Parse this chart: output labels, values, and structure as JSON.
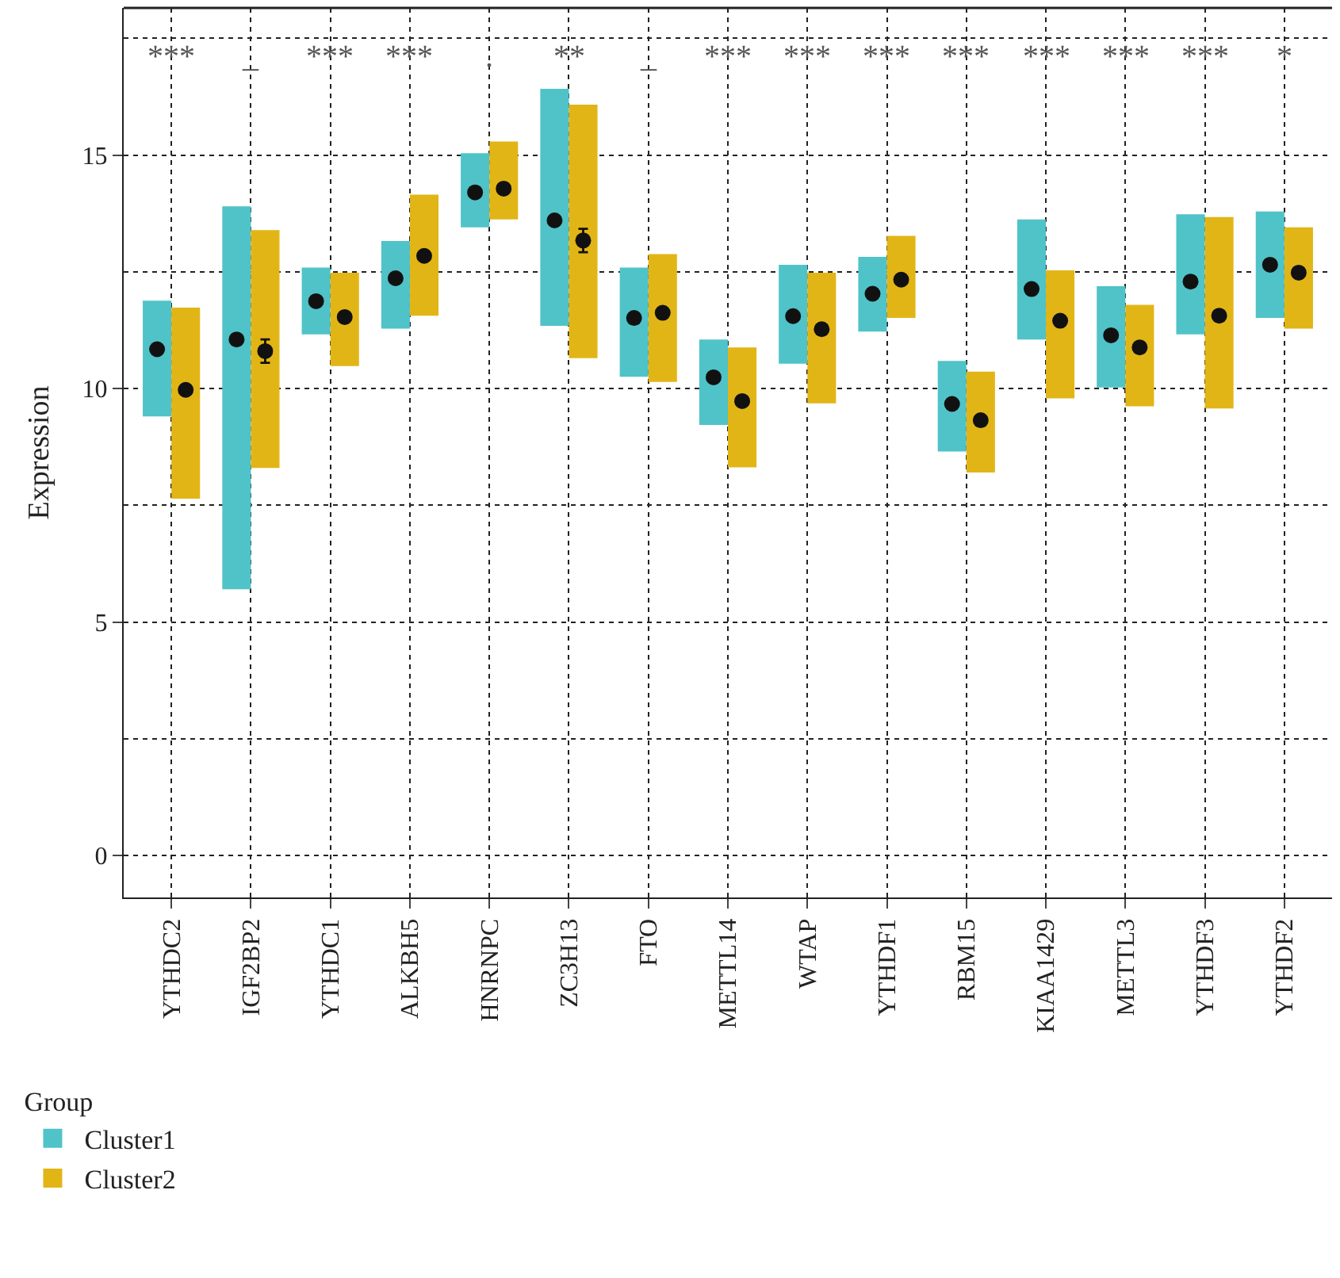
{
  "chart_data": {
    "type": "bar",
    "ylabel": "Expression",
    "legend_title": "Group",
    "categories": [
      "YTHDC2",
      "IGF2BP2",
      "YTHDC1",
      "ALKBH5",
      "HNRNPC",
      "ZC3H13",
      "FTO",
      "METTL14",
      "WTAP",
      "YTHDF1",
      "RBM15",
      "KIAA1429",
      "METTL3",
      "YTHDF3",
      "YTHDF2"
    ],
    "series": [
      {
        "name": "Cluster1",
        "color": "#4fc3c8",
        "base": [
          9.4,
          5.7,
          11.16,
          11.28,
          13.45,
          11.34,
          10.25,
          9.22,
          10.53,
          11.22,
          8.65,
          11.05,
          10.02,
          11.16,
          11.51
        ],
        "values": [
          2.48,
          8.2,
          1.43,
          1.88,
          1.59,
          5.08,
          2.34,
          1.83,
          2.12,
          1.6,
          1.94,
          2.57,
          2.17,
          2.57,
          2.28
        ]
      },
      {
        "name": "Cluster2",
        "color": "#e2b517",
        "base": [
          7.64,
          8.3,
          10.48,
          11.56,
          13.62,
          10.65,
          10.14,
          8.31,
          9.68,
          11.51,
          8.2,
          9.79,
          9.62,
          9.57,
          11.28
        ],
        "values": [
          4.09,
          5.09,
          2.0,
          2.59,
          1.67,
          5.43,
          2.74,
          2.57,
          2.8,
          1.76,
          2.16,
          2.74,
          2.17,
          4.1,
          2.17
        ]
      },
      {
        "type": "scatter",
        "color": "#111111",
        "values": [
          10.84,
          11.05,
          11.87,
          12.36,
          14.2,
          13.6,
          11.51,
          10.24,
          11.55,
          12.03,
          9.67,
          12.13,
          11.14,
          12.29,
          12.65
        ]
      },
      {
        "type": "scatter",
        "color": "#111111",
        "values": [
          9.97,
          10.8,
          11.53,
          12.84,
          14.28,
          13.17,
          11.62,
          9.73,
          11.27,
          12.33,
          9.32,
          11.45,
          10.88,
          11.56,
          12.48
        ],
        "errors": [
          null,
          0.25,
          null,
          null,
          null,
          0.25,
          null,
          null,
          null,
          null,
          null,
          null,
          null,
          null,
          null
        ]
      }
    ],
    "ylim": [
      -0.9,
      18.15
    ],
    "yticks": [
      0,
      5,
      10,
      15
    ],
    "grid": true,
    "legend": "bottom left",
    "marker": "circle",
    "annotations": [
      "***",
      "_",
      "***",
      "***",
      ".",
      "**",
      "_",
      "***",
      "***",
      "***",
      "***",
      "***",
      "***",
      "***",
      "*"
    ]
  }
}
